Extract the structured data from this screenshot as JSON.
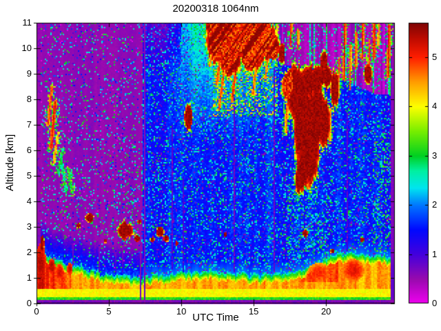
{
  "title": "20200318 1064nm",
  "axes": {
    "xlabel": "UTC Time",
    "ylabel": "Altitude [km]",
    "x_ticks": [
      0,
      5,
      10,
      15,
      20
    ],
    "y_ticks": [
      0,
      1,
      2,
      3,
      4,
      5,
      6,
      7,
      8,
      9,
      10,
      11
    ],
    "x_range": [
      0,
      24.75
    ],
    "y_range": [
      0,
      11
    ]
  },
  "colorbar": {
    "ticks": [
      0,
      1,
      2,
      3,
      4,
      5
    ],
    "range": [
      0,
      5.7
    ],
    "stops": [
      [
        0,
        "#f000f0"
      ],
      [
        0.5,
        "#980aae"
      ],
      [
        1,
        "#4400dd"
      ],
      [
        1.5,
        "#0008ff"
      ],
      [
        2,
        "#0077ff"
      ],
      [
        2.35,
        "#00e5ef"
      ],
      [
        2.7,
        "#00f0a0"
      ],
      [
        3,
        "#00d022"
      ],
      [
        3.5,
        "#77ee00"
      ],
      [
        4,
        "#fdff00"
      ],
      [
        4.5,
        "#ff9d00"
      ],
      [
        5,
        "#ff1e00"
      ],
      [
        5.35,
        "#c40c00"
      ],
      [
        5.7,
        "#7e0404"
      ]
    ]
  },
  "chart_data": {
    "type": "heatmap",
    "title": "20200318 1064nm",
    "xlabel": "UTC Time",
    "ylabel": "Altitude [km]",
    "x_range": [
      0,
      24.75
    ],
    "y_range": [
      0,
      11
    ],
    "colorbar_range": [
      0,
      5.7
    ],
    "colorbar_ticks": [
      0,
      1,
      2,
      3,
      4,
      5
    ],
    "grid_hours": [
      0,
      2,
      4,
      6,
      8,
      10,
      12,
      14,
      16,
      18,
      20,
      22,
      24
    ],
    "grid_altitude_km": [
      0.5,
      1.5,
      2.5,
      3.5,
      4.5,
      5.5,
      6.5,
      7.5,
      8.5,
      9.5,
      10.5
    ],
    "values_rows_by_altitude": [
      [
        4.8,
        4.6,
        4.5,
        4.4,
        4.5,
        4.5,
        4.5,
        4.4,
        4.3,
        4.4,
        4.4,
        4.5,
        4.3
      ],
      [
        5.0,
        3.6,
        1.6,
        1.2,
        1.5,
        1.6,
        1.7,
        1.6,
        1.6,
        1.8,
        3.2,
        4.3,
        3.8
      ],
      [
        0.6,
        1.2,
        1.3,
        2.0,
        2.4,
        1.7,
        1.6,
        1.6,
        1.7,
        2.2,
        1.8,
        1.5,
        1.0
      ],
      [
        0.5,
        0.9,
        1.0,
        1.1,
        1.6,
        1.6,
        1.6,
        1.6,
        1.6,
        1.7,
        1.6,
        1.4,
        0.9
      ],
      [
        0.5,
        1.5,
        0.9,
        1.0,
        1.5,
        1.6,
        1.6,
        1.6,
        1.6,
        4.0,
        1.7,
        1.4,
        0.9
      ],
      [
        0.5,
        1.8,
        0.8,
        0.9,
        1.4,
        1.5,
        1.6,
        1.6,
        1.6,
        5.3,
        1.7,
        1.4,
        0.9
      ],
      [
        0.5,
        0.7,
        0.7,
        0.8,
        1.3,
        1.5,
        1.7,
        1.7,
        1.6,
        5.5,
        1.8,
        1.3,
        0.8
      ],
      [
        0.6,
        1.5,
        0.6,
        0.8,
        1.3,
        2.2,
        1.8,
        1.8,
        1.7,
        5.6,
        3.5,
        1.5,
        0.8
      ],
      [
        0.6,
        1.2,
        0.6,
        0.8,
        1.4,
        2.2,
        2.6,
        3.2,
        2.0,
        5.6,
        3.0,
        1.6,
        0.7
      ],
      [
        0.5,
        0.6,
        0.6,
        0.8,
        1.5,
        2.4,
        4.5,
        5.5,
        1.2,
        4.5,
        1.5,
        1.5,
        0.6
      ],
      [
        0.5,
        0.6,
        0.6,
        0.9,
        1.6,
        2.6,
        5.0,
        5.6,
        0.8,
        0.8,
        1.0,
        1.2,
        0.5
      ]
    ],
    "features": [
      "strong surface aerosol layer 0 to ~2 km for all 24 h (orange/red), top sinking from ~2 km at 0 UTC to ~1 km at 6 UTC, rising to ~2 km by 21 UTC",
      "saturated cirrus anvil 12.2-16.6 UTC between 9 and 11 km with virga streaks",
      "deep mid-level cloud 17.2-20.2 UTC descending from ~9.3 km to ~4.4 km",
      "small cumulus blobs near 2.5-3.3 km between 2.5 and 10 UTC",
      "isolated cloud blob ~10.5 UTC at ~7.3 km",
      "thin streak clouds 0.7-2.5 UTC between 4.5 and 8.5 km",
      "red fall streaks 20.5-24.5 UTC between 8 and 11 km in magenta noise field",
      "instrument gap: double purple column near 7.2-7.5 UTC full height",
      "attenuated purple columns near 2.5 and 4.3 UTC; magenta streaks near 9.3, 13.7, 16.5 UTC",
      "noise background: purple speckle before 7.3 UTC, blue/cyan speckle after, magenta field above ~9.3 km after 16 UTC"
    ],
    "render": {
      "bl_top_km": [
        [
          0,
          2.1
        ],
        [
          1,
          1.8
        ],
        [
          2,
          1.6
        ],
        [
          3,
          1.42
        ],
        [
          4,
          1.25
        ],
        [
          5,
          1.12
        ],
        [
          6,
          1.02
        ],
        [
          7,
          0.98
        ],
        [
          8,
          1.08
        ],
        [
          9,
          1.12
        ],
        [
          10,
          1.18
        ],
        [
          11,
          1.22
        ],
        [
          12,
          1.26
        ],
        [
          13,
          1.22
        ],
        [
          14,
          1.16
        ],
        [
          15,
          1.12
        ],
        [
          16,
          1.12
        ],
        [
          17,
          1.16
        ],
        [
          18,
          1.3
        ],
        [
          19,
          1.52
        ],
        [
          20,
          1.75
        ],
        [
          21,
          1.95
        ],
        [
          22,
          2.0
        ],
        [
          23,
          1.9
        ],
        [
          24,
          1.85
        ],
        [
          24.75,
          1.8
        ]
      ],
      "clouds": [
        [
          13.2,
          10.7,
          1.5,
          1.15,
          1
        ],
        [
          12.5,
          10.3,
          0.8,
          0.85,
          1
        ],
        [
          14.35,
          10.5,
          1.3,
          1.0,
          1
        ],
        [
          15.55,
          10.35,
          1.05,
          0.8,
          1
        ],
        [
          16.25,
          10.05,
          0.55,
          0.55,
          1
        ],
        [
          13.4,
          9.55,
          0.75,
          0.6,
          1
        ],
        [
          14.9,
          9.7,
          0.8,
          0.6,
          1
        ],
        [
          12.15,
          10.9,
          0.45,
          0.55,
          1
        ],
        [
          18.0,
          8.3,
          0.8,
          1.0,
          0
        ],
        [
          18.5,
          7.0,
          0.75,
          1.7,
          0
        ],
        [
          18.95,
          6.3,
          0.6,
          1.6,
          0
        ],
        [
          18.4,
          5.2,
          0.45,
          0.8,
          0
        ],
        [
          19.35,
          7.4,
          0.6,
          1.3,
          0
        ],
        [
          19.85,
          7.1,
          0.45,
          0.9,
          0
        ],
        [
          20.1,
          8.9,
          0.3,
          0.5,
          0
        ],
        [
          17.5,
          8.5,
          0.55,
          0.75,
          1
        ],
        [
          19.0,
          8.7,
          0.85,
          0.6,
          0
        ],
        [
          18.15,
          4.85,
          0.3,
          0.5,
          0
        ],
        [
          19.6,
          8.95,
          0.4,
          0.45,
          0
        ],
        [
          10.5,
          7.3,
          0.3,
          0.45,
          0
        ],
        [
          20.6,
          8.4,
          0.3,
          0.7,
          0
        ],
        [
          19.85,
          9.5,
          0.25,
          0.35,
          0
        ],
        [
          22.9,
          9.0,
          0.3,
          0.45,
          0
        ],
        [
          16.95,
          9.8,
          0.22,
          0.4,
          0
        ],
        [
          2.9,
          3.05,
          0.14,
          0.1,
          0
        ],
        [
          3.65,
          3.35,
          0.3,
          0.17,
          0
        ],
        [
          4.75,
          2.45,
          0.1,
          0.08,
          0
        ],
        [
          6.15,
          2.85,
          0.55,
          0.33,
          0
        ],
        [
          6.95,
          2.55,
          0.2,
          0.14,
          0
        ],
        [
          7.1,
          3.2,
          0.13,
          0.1,
          0
        ],
        [
          8.0,
          2.5,
          0.15,
          0.1,
          0
        ],
        [
          8.55,
          2.8,
          0.27,
          0.2,
          0
        ],
        [
          8.95,
          2.55,
          0.18,
          0.13,
          0
        ],
        [
          9.7,
          2.35,
          0.12,
          0.09,
          0
        ],
        [
          13.05,
          2.7,
          0.1,
          0.08,
          0
        ],
        [
          18.55,
          2.75,
          0.2,
          0.15,
          0
        ],
        [
          20.45,
          2.05,
          0.15,
          0.1,
          0
        ],
        [
          22.5,
          2.5,
          0.13,
          0.1,
          0
        ],
        [
          0.4,
          2.35,
          0.15,
          0.3,
          0
        ]
      ],
      "streaks": [
        [
          1.05,
          8.45,
          0.8,
          7.0,
          0.1,
          5.0
        ],
        [
          1.3,
          7.9,
          1.0,
          6.1,
          0.12,
          5.2
        ],
        [
          1.5,
          6.7,
          1.2,
          5.5,
          0.09,
          4.6
        ],
        [
          1.8,
          6.0,
          1.5,
          5.1,
          0.08,
          3.2
        ],
        [
          1.75,
          5.6,
          2.05,
          4.3,
          0.08,
          3.1
        ],
        [
          2.2,
          5.3,
          2.45,
          4.35,
          0.09,
          3.4
        ],
        [
          12.95,
          9.1,
          12.6,
          7.6,
          0.09,
          5.0
        ],
        [
          13.8,
          9.3,
          13.5,
          7.9,
          0.1,
          5.1
        ],
        [
          15.2,
          9.4,
          14.95,
          8.2,
          0.09,
          4.9
        ],
        [
          12.3,
          10.2,
          11.95,
          9.3,
          0.08,
          4.7
        ],
        [
          16.0,
          9.6,
          15.8,
          8.8,
          0.08,
          4.8
        ],
        [
          12.7,
          9.6,
          12.45,
          8.6,
          0.1,
          5.0
        ],
        [
          18.1,
          5.6,
          18.05,
          4.4,
          0.12,
          5.0
        ],
        [
          18.8,
          5.2,
          18.75,
          4.5,
          0.1,
          4.9
        ],
        [
          17.3,
          7.8,
          17.25,
          6.7,
          0.1,
          4.8
        ],
        [
          20.3,
          7.6,
          20.25,
          6.4,
          0.09,
          4.7
        ],
        [
          21.3,
          11,
          21.25,
          8.8,
          0.09,
          5.2
        ],
        [
          21.7,
          10.1,
          21.65,
          8.4,
          0.08,
          4.9
        ],
        [
          22.1,
          10.6,
          22.05,
          9.2,
          0.08,
          5.0
        ],
        [
          22.55,
          11,
          22.5,
          9.6,
          0.09,
          5.1
        ],
        [
          23.0,
          10.3,
          22.95,
          8.8,
          0.08,
          4.9
        ],
        [
          23.35,
          11,
          23.3,
          9.6,
          0.08,
          5.3
        ],
        [
          23.65,
          11,
          23.6,
          10.1,
          0.07,
          4.8
        ],
        [
          24.35,
          10.9,
          24.3,
          8.9,
          0.1,
          5.2
        ],
        [
          20.9,
          9.6,
          20.85,
          8.1,
          0.08,
          4.8
        ],
        [
          17.6,
          11,
          17.55,
          10.1,
          0.08,
          5.0
        ],
        [
          18.1,
          10.7,
          18.05,
          10.0,
          0.07,
          4.9
        ],
        [
          16.6,
          10.9,
          16.55,
          10.3,
          0.06,
          4.4
        ]
      ],
      "stripes": [
        [
          0.12,
          0.25,
          1.9,
          11,
          0.5,
          0.85
        ],
        [
          2.5,
          0.1,
          1.5,
          11,
          0.5,
          0.7
        ],
        [
          4.33,
          0.12,
          1.2,
          11,
          0.5,
          0.7
        ],
        [
          5.5,
          0.07,
          1.2,
          9,
          0.45,
          0.5
        ],
        [
          5.95,
          0.07,
          1.2,
          9,
          0.45,
          0.5
        ],
        [
          7.17,
          0.1,
          0,
          11,
          0.5,
          0.92
        ],
        [
          7.45,
          0.13,
          0,
          11,
          0.5,
          0.92
        ],
        [
          9.35,
          0.09,
          1.3,
          7,
          0.35,
          0.6
        ],
        [
          10.15,
          0.06,
          1.2,
          5,
          0.4,
          0.5
        ],
        [
          13.65,
          0.09,
          1.2,
          8.5,
          0.3,
          0.65
        ],
        [
          16.45,
          0.09,
          1.2,
          9.2,
          0.3,
          0.65
        ],
        [
          21.5,
          0.07,
          2.0,
          7.5,
          0.35,
          0.5
        ],
        [
          24.62,
          0.28,
          0,
          11,
          0.52,
          0.92
        ],
        [
          18.18,
          0.08,
          0.25,
          4.3,
          4.9,
          0.75
        ]
      ],
      "bl_hot_blobs": [
        [
          0.3,
          1.6,
          0.35,
          0.75,
          5.3
        ],
        [
          1.05,
          1.45,
          0.25,
          0.3,
          5.3
        ],
        [
          1.6,
          1.2,
          0.3,
          0.35,
          5.1
        ],
        [
          2.3,
          1.35,
          0.18,
          0.25,
          5.2
        ],
        [
          19.5,
          1.2,
          0.8,
          0.4,
          4.85
        ],
        [
          21.9,
          1.3,
          0.75,
          0.45,
          5.0
        ]
      ]
    }
  }
}
